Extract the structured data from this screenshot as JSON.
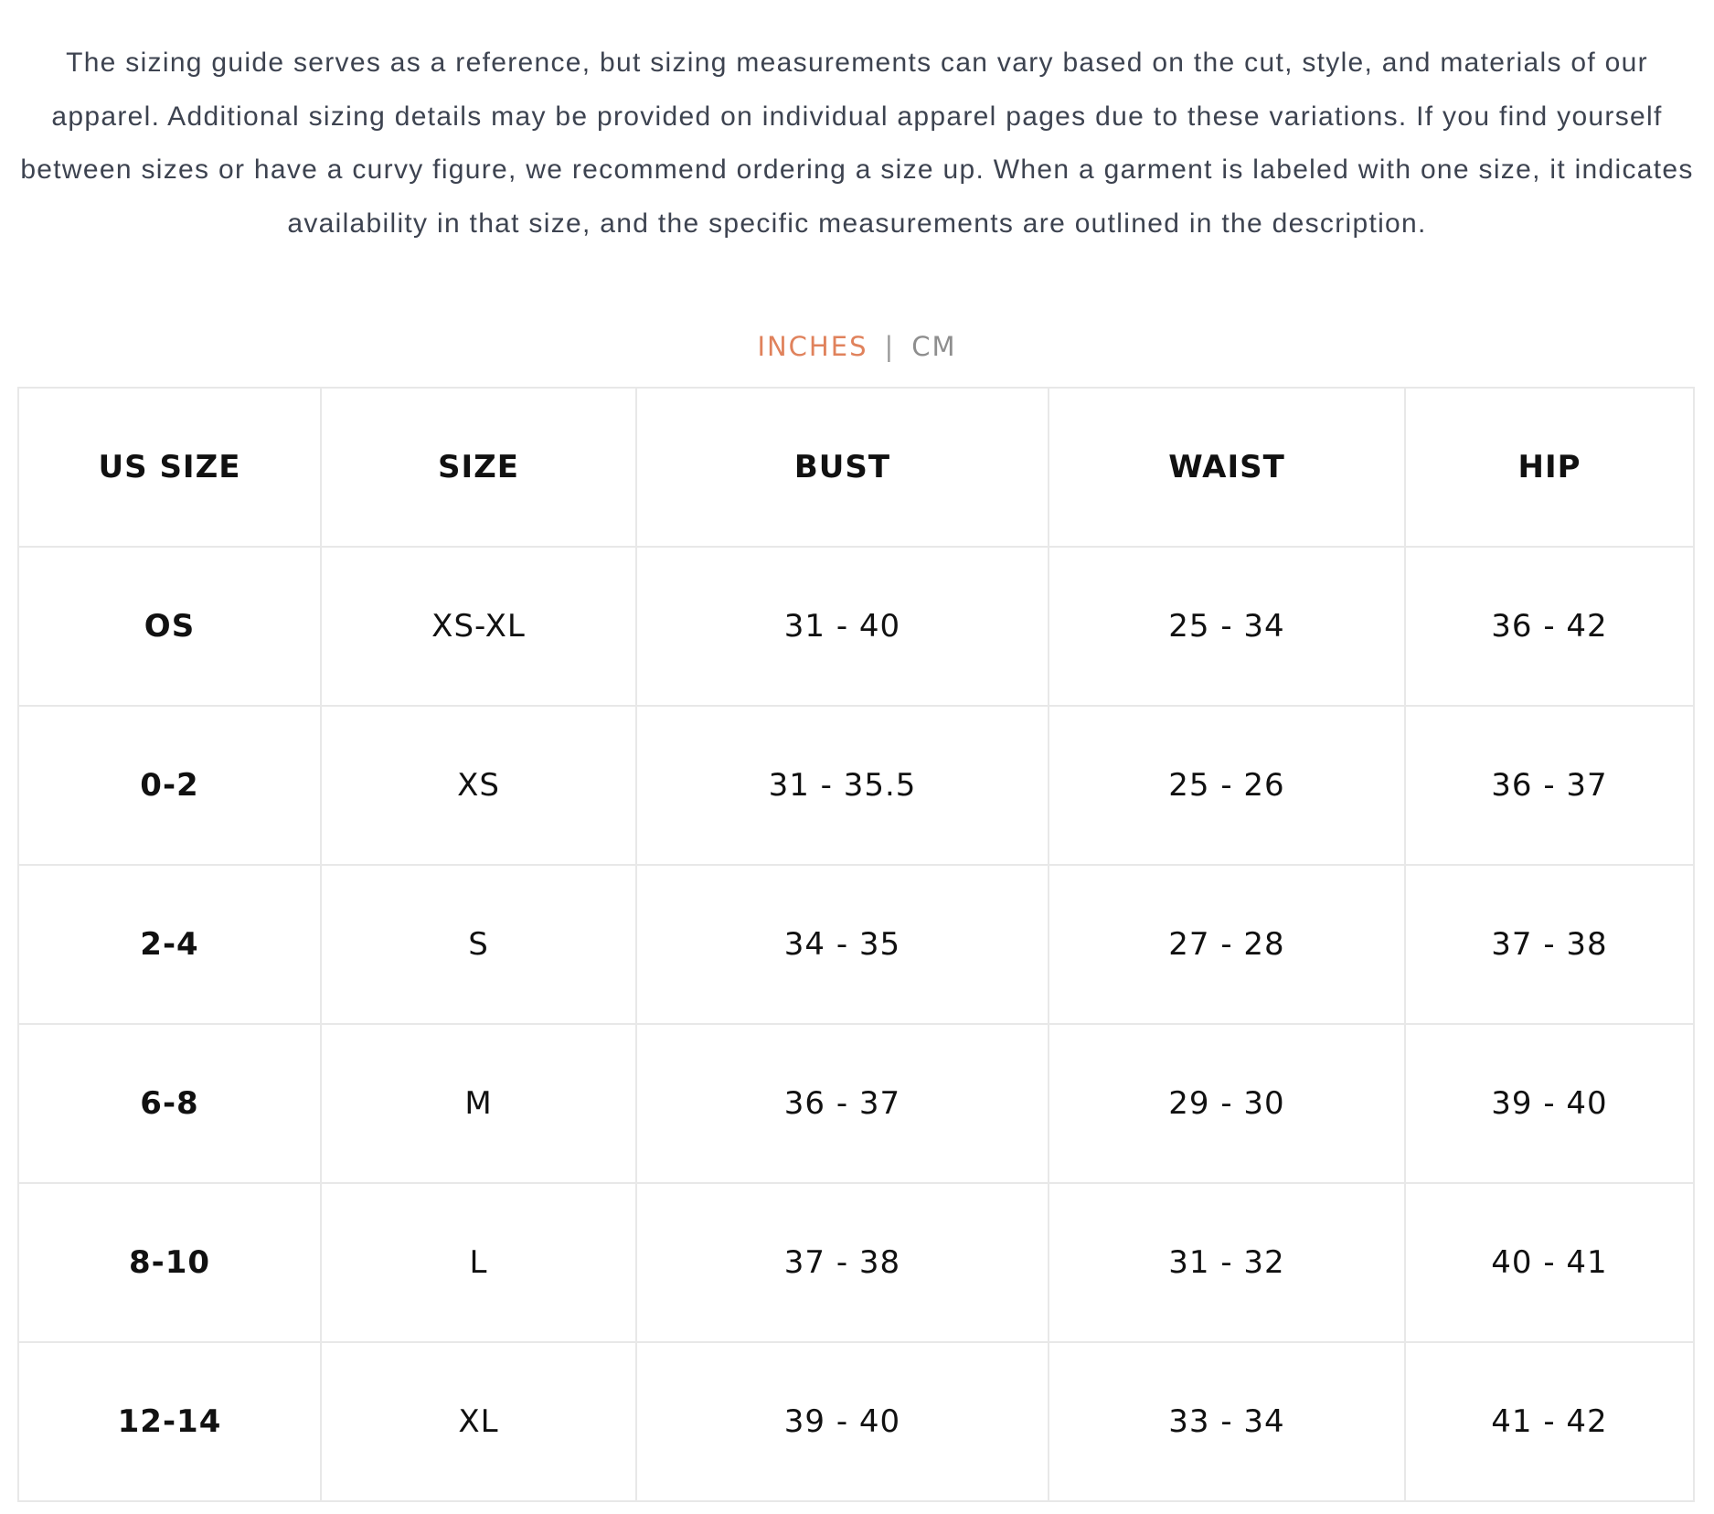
{
  "intro": "The sizing guide serves as a reference, but sizing measurements can vary based on the cut, style, and materials of our apparel. Additional sizing details may be provided on individual apparel pages due to these variations. If you find yourself between sizes or have a curvy figure, we recommend ordering a size up. When a garment is labeled with one size, it indicates availability in that size, and the specific measurements are outlined in the description.",
  "units": {
    "active": "INCHES",
    "separator": "|",
    "inactive": "CM",
    "active_color": "#e0825c"
  },
  "table": {
    "headers": [
      "US SIZE",
      "SIZE",
      "BUST",
      "WAIST",
      "HIP"
    ],
    "rows": [
      [
        "OS",
        "XS-XL",
        "31 - 40",
        "25 - 34",
        "36 - 42"
      ],
      [
        "0-2",
        "XS",
        "31 - 35.5",
        "25 - 26",
        "36 - 37"
      ],
      [
        "2-4",
        "S",
        "34 - 35",
        "27 - 28",
        "37 - 38"
      ],
      [
        "6-8",
        "M",
        "36 - 37",
        "29 - 30",
        "39 - 40"
      ],
      [
        "8-10",
        "L",
        "37 - 38",
        "31 - 32",
        "40 - 41"
      ],
      [
        "12-14",
        "XL",
        "39 - 40",
        "33 - 34",
        "41 - 42"
      ]
    ]
  }
}
